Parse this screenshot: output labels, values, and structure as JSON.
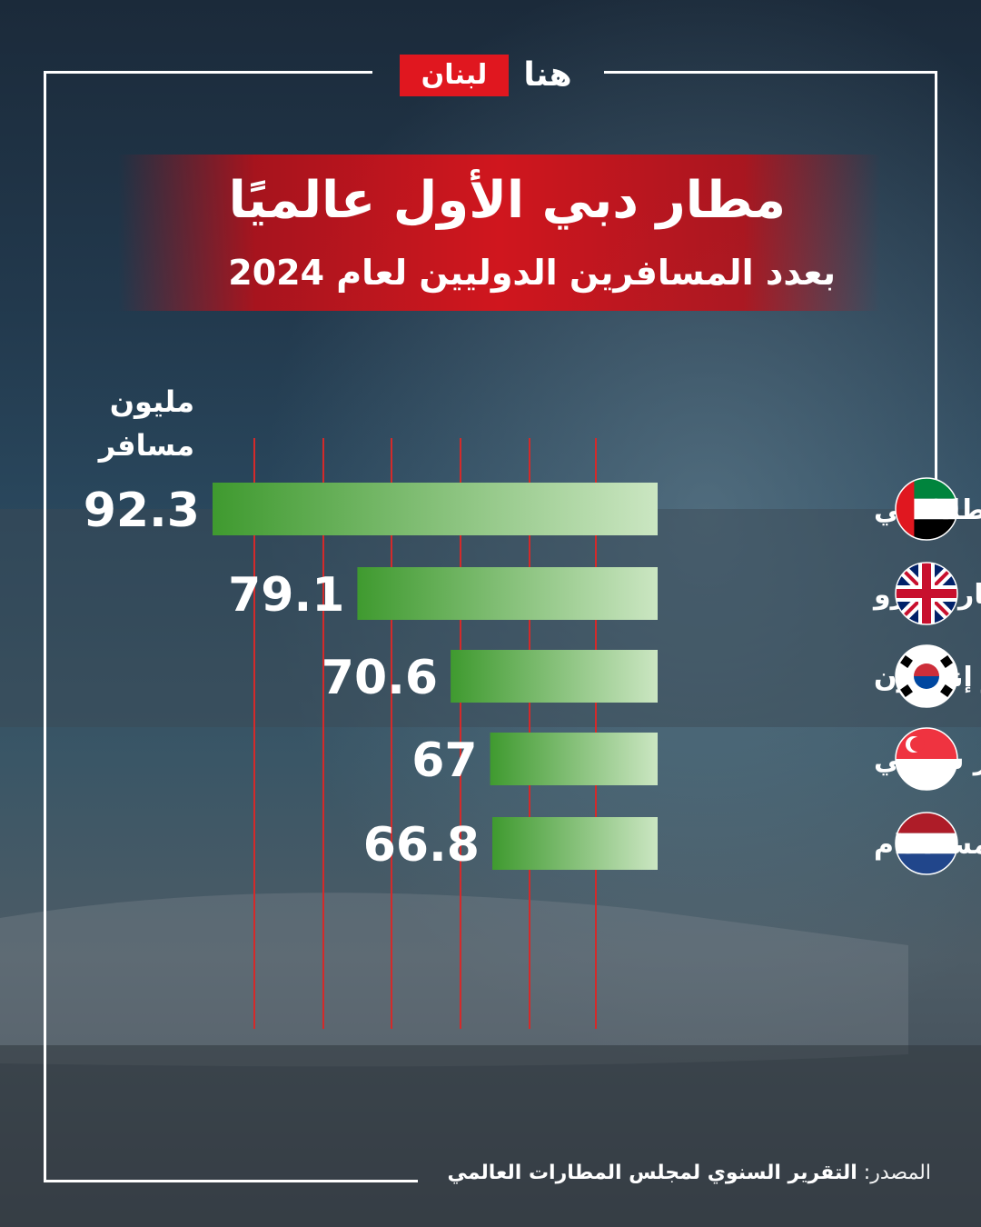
{
  "brand": {
    "logo_part_red": "لبنان",
    "logo_part_white": "هنا"
  },
  "header": {
    "title": "مطار دبي الأول عالميًا",
    "subtitle": "بعدد المسافرين الدوليين لعام 2024"
  },
  "colors": {
    "accent_red": "#d0161e",
    "bar_dark": "#3f9a2f",
    "bar_light": "#cbe6c2",
    "gridline": "#d42a2a"
  },
  "chart_data": {
    "type": "bar",
    "orientation": "horizontal",
    "unit_label": "مليون\nمسافر",
    "categories": [
      "مطار دبي",
      "مطار هيثرو",
      "مطار إنتشون",
      "مطار شانغي",
      "مطار أمستردام"
    ],
    "values": [
      92.3,
      79.1,
      70.6,
      67,
      66.8
    ],
    "value_labels": [
      "92.3",
      "79.1",
      "70.6",
      "67",
      "66.8"
    ],
    "flags": [
      "uae-flag-icon",
      "uk-flag-icon",
      "south-korea-flag-icon",
      "singapore-flag-icon",
      "netherlands-flag-icon"
    ],
    "grid": true,
    "legend": "none"
  },
  "footer": {
    "source_label": "المصدر:",
    "source_text": "التقرير السنوي لمجلس المطارات العالمي"
  }
}
